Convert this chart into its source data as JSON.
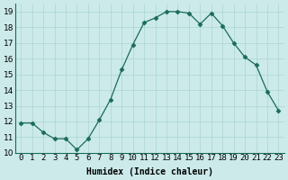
{
  "xlabel": "Humidex (Indice chaleur)",
  "x_values": [
    0,
    1,
    2,
    3,
    4,
    5,
    6,
    7,
    8,
    9,
    10,
    11,
    12,
    13,
    14,
    15,
    16,
    17,
    18,
    19,
    20,
    21,
    22,
    23
  ],
  "y_values": [
    11.9,
    11.9,
    11.3,
    10.9,
    10.9,
    10.2,
    10.9,
    12.1,
    13.4,
    15.3,
    16.9,
    18.3,
    18.6,
    19.0,
    19.0,
    18.9,
    18.2,
    18.9,
    18.1,
    17.0,
    16.1,
    15.6,
    13.9,
    12.7
  ],
  "line_color": "#1a6b5a",
  "marker": "D",
  "marker_size": 2.5,
  "bg_color": "#cceaea",
  "grid_color": "#aad4d4",
  "ylim": [
    10,
    19.5
  ],
  "yticks": [
    10,
    11,
    12,
    13,
    14,
    15,
    16,
    17,
    18,
    19
  ],
  "label_fontsize": 7,
  "tick_fontsize": 6.5
}
